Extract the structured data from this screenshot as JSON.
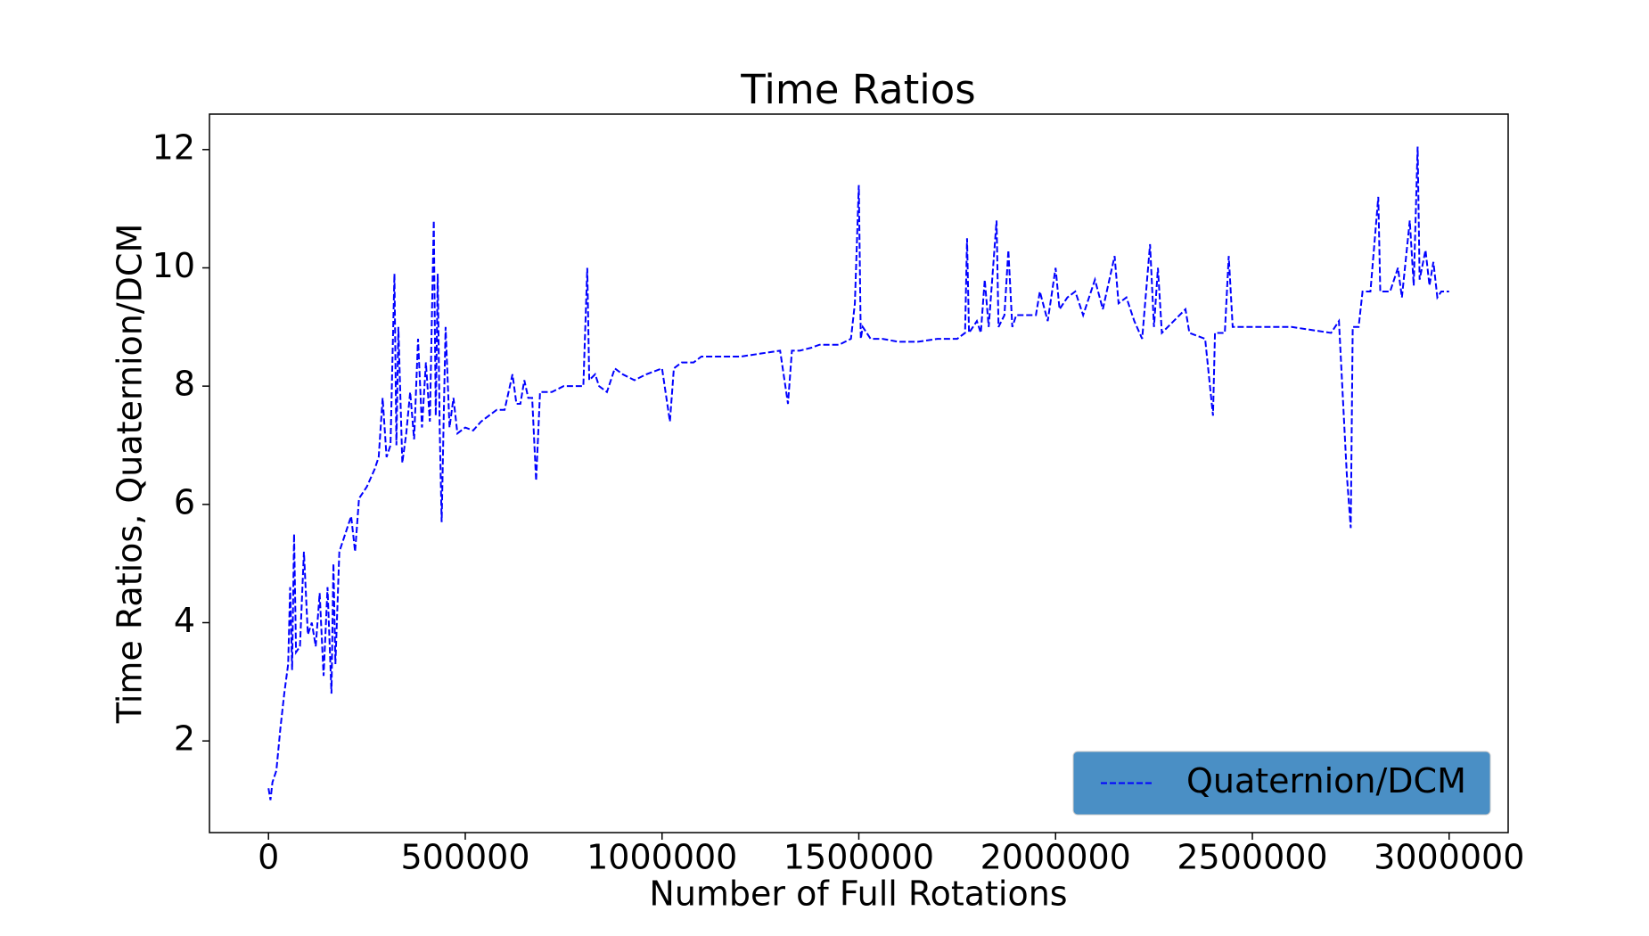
{
  "chart_data": {
    "type": "line",
    "title": "Time Ratios",
    "xlabel": "Number of Full Rotations",
    "ylabel": "Time Ratios, Quaternion/DCM",
    "x": [
      0,
      5000,
      10000,
      20000,
      30000,
      40000,
      50000,
      55000,
      60000,
      65000,
      70000,
      80000,
      90000,
      100000,
      110000,
      120000,
      130000,
      140000,
      150000,
      160000,
      165000,
      170000,
      180000,
      200000,
      210000,
      220000,
      230000,
      250000,
      270000,
      280000,
      290000,
      300000,
      310000,
      320000,
      325000,
      330000,
      340000,
      350000,
      360000,
      370000,
      380000,
      390000,
      400000,
      410000,
      420000,
      425000,
      430000,
      435000,
      440000,
      445000,
      450000,
      460000,
      470000,
      480000,
      500000,
      520000,
      540000,
      560000,
      580000,
      600000,
      620000,
      630000,
      640000,
      650000,
      660000,
      670000,
      680000,
      690000,
      720000,
      750000,
      780000,
      800000,
      810000,
      815000,
      830000,
      840000,
      860000,
      880000,
      900000,
      930000,
      960000,
      1000000,
      1020000,
      1030000,
      1050000,
      1080000,
      1100000,
      1150000,
      1200000,
      1250000,
      1300000,
      1320000,
      1330000,
      1350000,
      1380000,
      1400000,
      1450000,
      1480000,
      1490000,
      1500000,
      1505000,
      1510000,
      1530000,
      1560000,
      1600000,
      1650000,
      1700000,
      1750000,
      1770000,
      1775000,
      1780000,
      1800000,
      1810000,
      1820000,
      1830000,
      1850000,
      1855000,
      1870000,
      1880000,
      1890000,
      1900000,
      1950000,
      1960000,
      1980000,
      2000000,
      2010000,
      2030000,
      2050000,
      2070000,
      2100000,
      2120000,
      2150000,
      2160000,
      2180000,
      2200000,
      2220000,
      2240000,
      2250000,
      2260000,
      2270000,
      2300000,
      2330000,
      2340000,
      2380000,
      2400000,
      2405000,
      2430000,
      2440000,
      2450000,
      2500000,
      2550000,
      2600000,
      2650000,
      2700000,
      2720000,
      2740000,
      2750000,
      2755000,
      2770000,
      2780000,
      2800000,
      2820000,
      2825000,
      2850000,
      2870000,
      2880000,
      2900000,
      2910000,
      2920000,
      2925000,
      2940000,
      2950000,
      2960000,
      2970000,
      2980000,
      3000000
    ],
    "series": [
      {
        "name": "Quaternion/DCM",
        "color": "#0000ff",
        "values": [
          1.2,
          1.0,
          1.3,
          1.5,
          2.2,
          2.8,
          3.3,
          4.6,
          3.2,
          5.5,
          3.5,
          3.6,
          5.2,
          3.8,
          4.0,
          3.6,
          4.5,
          3.1,
          4.6,
          2.8,
          5.0,
          3.3,
          5.2,
          5.6,
          5.8,
          5.2,
          6.1,
          6.3,
          6.6,
          6.8,
          7.8,
          6.8,
          7.0,
          9.9,
          7.0,
          9.0,
          6.7,
          7.2,
          7.9,
          7.1,
          8.8,
          7.3,
          8.4,
          7.4,
          10.8,
          7.5,
          9.9,
          7.3,
          5.7,
          7.4,
          9.0,
          7.3,
          7.8,
          7.2,
          7.3,
          7.25,
          7.4,
          7.5,
          7.6,
          7.6,
          8.2,
          7.7,
          7.7,
          8.1,
          7.8,
          7.8,
          6.4,
          7.9,
          7.9,
          8.0,
          8.0,
          8.0,
          10.0,
          8.1,
          8.2,
          8.0,
          7.9,
          8.3,
          8.2,
          8.1,
          8.2,
          8.3,
          7.4,
          8.3,
          8.4,
          8.4,
          8.5,
          8.5,
          8.5,
          8.55,
          8.6,
          7.7,
          8.6,
          8.6,
          8.65,
          8.7,
          8.7,
          8.8,
          9.4,
          11.4,
          8.8,
          9.0,
          8.8,
          8.8,
          8.75,
          8.75,
          8.8,
          8.8,
          8.9,
          10.5,
          8.9,
          9.1,
          8.9,
          9.8,
          9.0,
          10.8,
          9.0,
          9.2,
          10.3,
          9.0,
          9.2,
          9.2,
          9.6,
          9.1,
          10.0,
          9.3,
          9.5,
          9.6,
          9.2,
          9.8,
          9.3,
          10.2,
          9.4,
          9.5,
          9.1,
          8.8,
          10.4,
          9.0,
          10.0,
          8.9,
          9.1,
          9.3,
          8.9,
          8.8,
          7.5,
          8.9,
          8.9,
          10.2,
          9.0,
          9.0,
          9.0,
          9.0,
          8.95,
          8.9,
          9.1,
          6.5,
          5.6,
          9.0,
          9.0,
          9.6,
          9.6,
          11.2,
          9.6,
          9.6,
          10.0,
          9.5,
          10.8,
          9.7,
          12.05,
          9.8,
          10.3,
          9.7,
          10.1,
          9.5,
          9.6,
          9.6
        ]
      }
    ],
    "xlim": [
      -150000,
      3150000
    ],
    "xticks": [
      0,
      500000,
      1000000,
      1500000,
      2000000,
      2500000,
      3000000
    ],
    "ylim": [
      0.45,
      12.6
    ],
    "yticks": [
      2,
      4,
      6,
      8,
      10,
      12
    ],
    "legend": "lower right",
    "legend_color": "#4a8fc5",
    "line_style": "dashed"
  }
}
